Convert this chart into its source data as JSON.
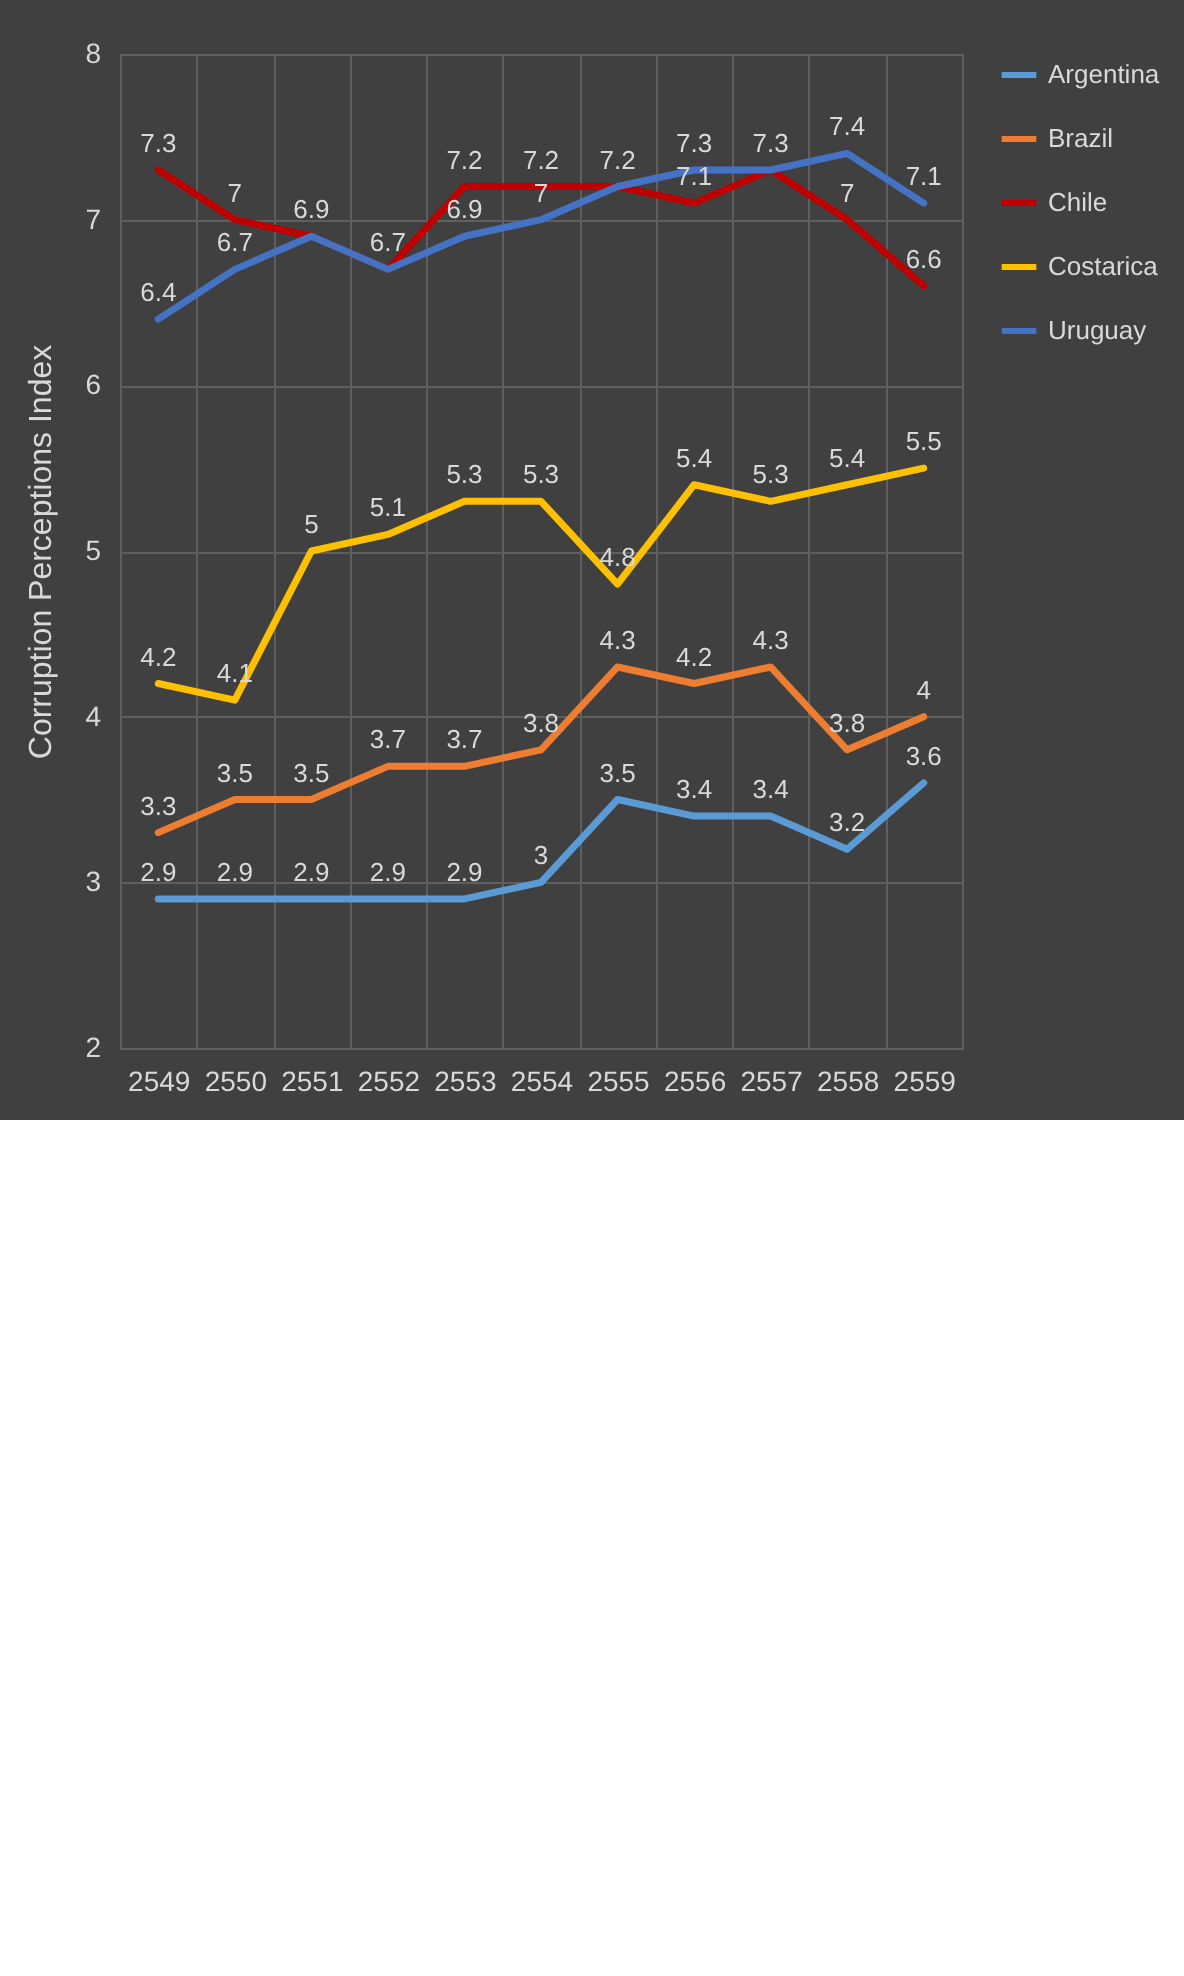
{
  "chart_data": {
    "type": "line",
    "ylabel": "Corruption Perceptions Index",
    "categories": [
      "2549",
      "2550",
      "2551",
      "2552",
      "2553",
      "2554",
      "2555",
      "2556",
      "2557",
      "2558",
      "2559"
    ],
    "ylim": [
      2,
      8
    ],
    "yticks": [
      2,
      3,
      4,
      5,
      6,
      7,
      8
    ],
    "grid": true,
    "legend": "right",
    "data_labels": true,
    "series": [
      {
        "name": "Argentina",
        "color": "#5b9bd5",
        "values": [
          2.9,
          2.9,
          2.9,
          2.9,
          2.9,
          3,
          3.5,
          3.4,
          3.4,
          3.2,
          3.6
        ]
      },
      {
        "name": "Brazil",
        "color": "#ed7d31",
        "values": [
          3.3,
          3.5,
          3.5,
          3.7,
          3.7,
          3.8,
          4.3,
          4.2,
          4.3,
          3.8,
          4
        ]
      },
      {
        "name": "Chile",
        "color": "#c00000",
        "values": [
          7.3,
          7,
          6.9,
          6.7,
          7.2,
          7.2,
          7.2,
          7.1,
          7.3,
          7,
          6.6
        ]
      },
      {
        "name": "Costarica",
        "color": "#ffc000",
        "values": [
          4.2,
          4.1,
          5,
          5.1,
          5.3,
          5.3,
          4.8,
          5.4,
          5.3,
          5.4,
          5.5
        ]
      },
      {
        "name": "Uruguay",
        "color": "#4472c4",
        "values": [
          6.4,
          6.7,
          6.9,
          6.7,
          6.9,
          7,
          7.2,
          7.3,
          7.3,
          7.4,
          7.1
        ],
        "value_labels": [
          "6.4",
          "6.7",
          null,
          null,
          "6.9",
          "7",
          null,
          "7.3",
          null,
          "7.4",
          "7.1"
        ]
      }
    ]
  }
}
